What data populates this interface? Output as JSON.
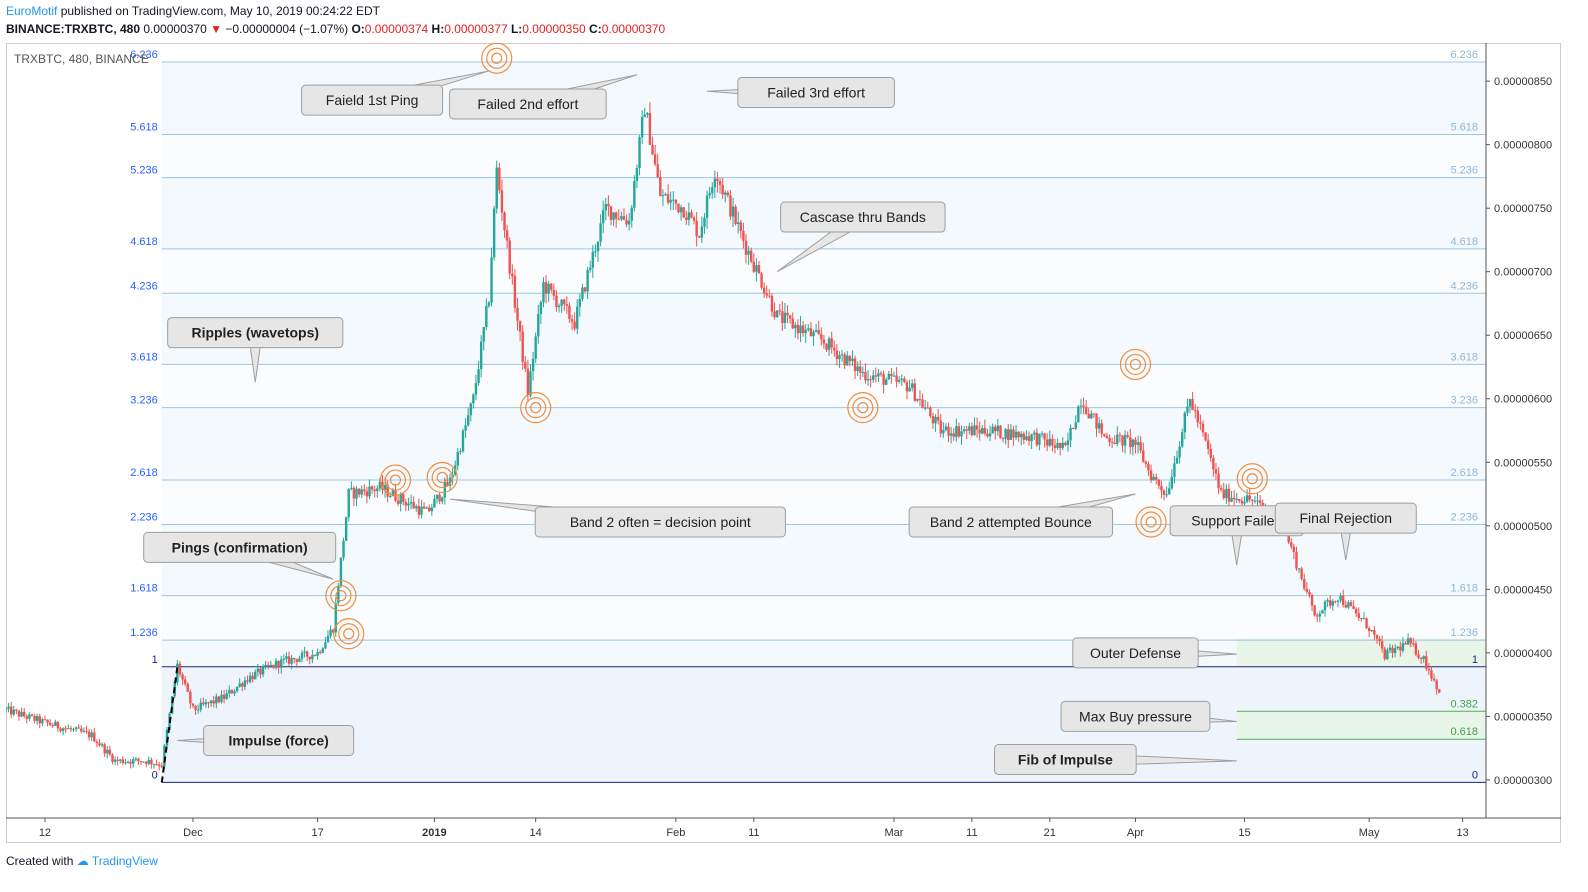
{
  "header": {
    "author": "EuroMotif",
    "published_text": "published on TradingView.com, May 10, 2019 00:24:22 EDT",
    "symbol_line": "BINANCE:TRXBTC, 480",
    "last": "0.00000370",
    "change": "−0.00000004 (−1.07%)",
    "o_label": "O:",
    "o": "0.00000374",
    "h_label": "H:",
    "h": "0.00000377",
    "l_label": "L:",
    "l": "0.00000350",
    "c_label": "C:",
    "c": "0.00000370"
  },
  "chart_title": "TRXBTC, 480, BINANCE",
  "footer": {
    "created_with": "Created with",
    "brand": "TradingView"
  },
  "colors": {
    "up": "#26a69a",
    "down": "#ef5350",
    "band_line": "#9ac8e6",
    "band_label": "#2962ff",
    "impulse_line": "#1a237e",
    "green_zone": "#e8f5e9",
    "ring": "#f28c3b",
    "callout_fill": "#e6e6e6",
    "callout_stroke": "#9e9e9e"
  },
  "chart_data": {
    "type": "candlestick",
    "title": "TRXBTC, 480, BINANCE",
    "y_axis": {
      "min": 2.7e-06,
      "max": 8.8e-06,
      "ticks": [
        "0.00000300",
        "0.00000350",
        "0.00000400",
        "0.00000450",
        "0.00000500",
        "0.00000550",
        "0.00000600",
        "0.00000650",
        "0.00000700",
        "0.00000750",
        "0.00000800",
        "0.00000850"
      ]
    },
    "x_axis": {
      "start": "2018-11-07",
      "end": "2019-05-16",
      "ticks": [
        {
          "date": "2018-11-12",
          "label": "12"
        },
        {
          "date": "2018-12-01",
          "label": "Dec"
        },
        {
          "date": "2018-12-17",
          "label": "17"
        },
        {
          "date": "2019-01-01",
          "label": "2019"
        },
        {
          "date": "2019-01-14",
          "label": "14"
        },
        {
          "date": "2019-02-01",
          "label": "Feb"
        },
        {
          "date": "2019-02-11",
          "label": "11"
        },
        {
          "date": "2019-03-01",
          "label": "Mar"
        },
        {
          "date": "2019-03-11",
          "label": "11"
        },
        {
          "date": "2019-03-21",
          "label": "21"
        },
        {
          "date": "2019-04-01",
          "label": "Apr"
        },
        {
          "date": "2019-04-15",
          "label": "15"
        },
        {
          "date": "2019-05-01",
          "label": "May"
        },
        {
          "date": "2019-05-13",
          "label": "13"
        }
      ]
    },
    "price_path": [
      [
        "2018-11-07",
        3.55e-06
      ],
      [
        "2018-11-12",
        3.45e-06
      ],
      [
        "2018-11-18",
        3.35e-06
      ],
      [
        "2018-11-21",
        3.15e-06
      ],
      [
        "2018-11-25",
        3.15e-06
      ],
      [
        "2018-11-27",
        3.12e-06
      ],
      [
        "2018-11-29",
        3.9e-06
      ],
      [
        "2018-12-01",
        3.55e-06
      ],
      [
        "2018-12-05",
        3.65e-06
      ],
      [
        "2018-12-08",
        3.8e-06
      ],
      [
        "2018-12-12",
        3.92e-06
      ],
      [
        "2018-12-17",
        4e-06
      ],
      [
        "2018-12-19",
        4.2e-06
      ],
      [
        "2018-12-21",
        5.25e-06
      ],
      [
        "2018-12-25",
        5.3e-06
      ],
      [
        "2018-12-28",
        5.2e-06
      ],
      [
        "2018-12-31",
        5.1e-06
      ],
      [
        "2019-01-03",
        5.35e-06
      ],
      [
        "2019-01-06",
        6e-06
      ],
      [
        "2019-01-08",
        6.8e-06
      ],
      [
        "2019-01-09",
        7.8e-06
      ],
      [
        "2019-01-11",
        6.9e-06
      ],
      [
        "2019-01-13",
        6.05e-06
      ],
      [
        "2019-01-15",
        6.9e-06
      ],
      [
        "2019-01-19",
        6.6e-06
      ],
      [
        "2019-01-23",
        7.5e-06
      ],
      [
        "2019-01-26",
        7.4e-06
      ],
      [
        "2019-01-28",
        8.3e-06
      ],
      [
        "2019-01-30",
        7.6e-06
      ],
      [
        "2019-02-02",
        7.5e-06
      ],
      [
        "2019-02-04",
        7.3e-06
      ],
      [
        "2019-02-06",
        7.8e-06
      ],
      [
        "2019-02-10",
        7.2e-06
      ],
      [
        "2019-02-14",
        6.65e-06
      ],
      [
        "2019-02-20",
        6.45e-06
      ],
      [
        "2019-02-25",
        6.2e-06
      ],
      [
        "2019-03-03",
        6.1e-06
      ],
      [
        "2019-03-07",
        5.75e-06
      ],
      [
        "2019-03-13",
        5.75e-06
      ],
      [
        "2019-03-19",
        5.7e-06
      ],
      [
        "2019-03-23",
        5.6e-06
      ],
      [
        "2019-03-25",
        6e-06
      ],
      [
        "2019-03-28",
        5.7e-06
      ],
      [
        "2019-04-01",
        5.65e-06
      ],
      [
        "2019-04-03",
        5.4e-06
      ],
      [
        "2019-04-05",
        5.25e-06
      ],
      [
        "2019-04-08",
        6e-06
      ],
      [
        "2019-04-10",
        5.65e-06
      ],
      [
        "2019-04-12",
        5.25e-06
      ],
      [
        "2019-04-16",
        5.2e-06
      ],
      [
        "2019-04-20",
        5e-06
      ],
      [
        "2019-04-24",
        4.3e-06
      ],
      [
        "2019-04-27",
        4.45e-06
      ],
      [
        "2019-05-01",
        4.2e-06
      ],
      [
        "2019-05-03",
        3.98e-06
      ],
      [
        "2019-05-06",
        4.08e-06
      ],
      [
        "2019-05-08",
        3.95e-06
      ],
      [
        "2019-05-10",
        3.7e-06
      ]
    ],
    "fib_levels": [
      {
        "ratio": "0",
        "price": 2.98e-06
      },
      {
        "ratio": "1",
        "price": 3.89e-06
      },
      {
        "ratio": "1.236",
        "price": 4.1e-06
      },
      {
        "ratio": "1.618",
        "price": 4.45e-06
      },
      {
        "ratio": "2.236",
        "price": 5.01e-06
      },
      {
        "ratio": "2.618",
        "price": 5.36e-06
      },
      {
        "ratio": "3.236",
        "price": 5.93e-06
      },
      {
        "ratio": "3.618",
        "price": 6.27e-06
      },
      {
        "ratio": "4.236",
        "price": 6.83e-06
      },
      {
        "ratio": "4.618",
        "price": 7.18e-06
      },
      {
        "ratio": "5.236",
        "price": 7.74e-06
      },
      {
        "ratio": "5.618",
        "price": 8.08e-06
      },
      {
        "ratio": "6.236",
        "price": 8.65e-06
      }
    ],
    "right_fib": {
      "start": "2019-04-14",
      "levels": [
        {
          "ratio": "1",
          "price": 3.89e-06
        },
        {
          "ratio": "0.382",
          "price": 3.54e-06
        },
        {
          "ratio": "0.618",
          "price": 3.32e-06
        }
      ],
      "zone_top": 4.11e-06
    },
    "impulse": {
      "from": [
        "2018-11-27",
        2.98e-06
      ],
      "to": [
        "2018-11-29",
        3.89e-06
      ]
    },
    "rings": [
      {
        "date": "2019-01-09",
        "price": 8.68e-06
      },
      {
        "date": "2019-01-14",
        "price": 5.93e-06
      },
      {
        "date": "2018-12-20",
        "price": 4.45e-06
      },
      {
        "date": "2018-12-21",
        "price": 4.15e-06
      },
      {
        "date": "2018-12-27",
        "price": 5.36e-06
      },
      {
        "date": "2019-01-02",
        "price": 5.38e-06
      },
      {
        "date": "2019-02-25",
        "price": 5.93e-06
      },
      {
        "date": "2019-04-01",
        "price": 6.27e-06
      },
      {
        "date": "2019-04-03",
        "price": 5.03e-06
      },
      {
        "date": "2019-04-16",
        "price": 5.37e-06
      }
    ],
    "annotations": [
      {
        "name": "failed-1st-ping",
        "text": "Faield 1st Ping",
        "at": [
          "2018-12-24",
          8.35e-06
        ],
        "pointer": [
          "2019-01-08",
          8.58e-06
        ],
        "bold": false
      },
      {
        "name": "failed-2nd-effort",
        "text": "Failed 2nd effort",
        "at": [
          "2019-01-13",
          8.32e-06
        ],
        "pointer": [
          "2019-01-27",
          8.55e-06
        ],
        "bold": false
      },
      {
        "name": "failed-3rd-effort",
        "text": "Failed 3rd effort",
        "at": [
          "2019-02-19",
          8.41e-06
        ],
        "pointer": [
          "2019-02-05",
          8.42e-06
        ],
        "bold": false
      },
      {
        "name": "cascade-thru-bands",
        "text": "Cascase thru Bands",
        "at": [
          "2019-02-25",
          7.43e-06
        ],
        "pointer": [
          "2019-02-14",
          7e-06
        ],
        "bold": false
      },
      {
        "name": "ripples-wavetops",
        "text": "Ripples (wavetops)",
        "at": [
          "2018-12-09",
          6.52e-06
        ],
        "pointer": [
          "2018-12-09",
          6.13e-06
        ],
        "bold": true
      },
      {
        "name": "band2-decision",
        "text": "Band 2 often = decision point",
        "at": [
          "2019-01-30",
          5.03e-06
        ],
        "pointer": [
          "2019-01-03",
          5.21e-06
        ],
        "bold": false
      },
      {
        "name": "band2-bounce",
        "text": "Band 2 attempted Bounce",
        "at": [
          "2019-03-16",
          5.03e-06
        ],
        "pointer": [
          "2019-04-01",
          5.25e-06
        ],
        "bold": false
      },
      {
        "name": "pings-confirmation",
        "text": "Pings (confirmation)",
        "at": [
          "2018-12-07",
          4.83e-06
        ],
        "pointer": [
          "2018-12-19",
          4.58e-06
        ],
        "bold": true
      },
      {
        "name": "support-failed",
        "text": "Support Failed",
        "at": [
          "2019-04-14",
          5.04e-06
        ],
        "pointer": [
          "2019-04-14",
          4.69e-06
        ],
        "bold": false
      },
      {
        "name": "final-rejection",
        "text": "Final Rejection",
        "at": [
          "2019-04-28",
          5.06e-06
        ],
        "pointer": [
          "2019-04-28",
          4.73e-06
        ],
        "bold": false
      },
      {
        "name": "outer-defense",
        "text": "Outer Defense",
        "at": [
          "2019-04-01",
          4e-06
        ],
        "pointer": [
          "2019-04-14",
          3.99e-06
        ],
        "bold": false
      },
      {
        "name": "max-buy-pressure",
        "text": "Max Buy pressure",
        "at": [
          "2019-04-01",
          3.5e-06
        ],
        "pointer": [
          "2019-04-14",
          3.46e-06
        ],
        "bold": false
      },
      {
        "name": "impulse-force",
        "text": "Impulse (force)",
        "at": [
          "2018-12-12",
          3.31e-06
        ],
        "pointer": [
          "2018-11-29",
          3.31e-06
        ],
        "bold": true
      },
      {
        "name": "fib-of-impulse",
        "text": "Fib of Impulse",
        "at": [
          "2019-03-23",
          3.16e-06
        ],
        "pointer": [
          "2019-04-14",
          3.15e-06
        ],
        "bold": true
      }
    ]
  }
}
